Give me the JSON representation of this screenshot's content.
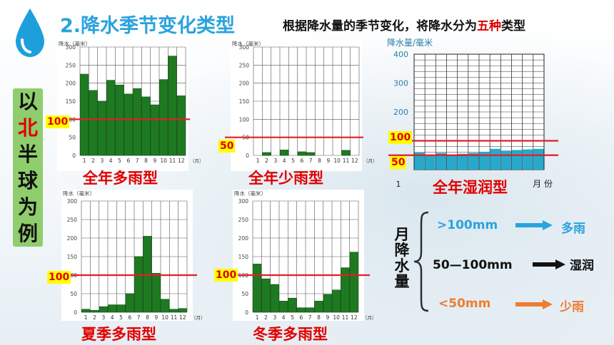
{
  "header": {
    "title": "2.降水季节变化类型",
    "subtitle_pre": "根据降水量的季节变化，将降水分为",
    "subtitle_hl": "五种",
    "subtitle_post": "类型"
  },
  "side_label": [
    "以",
    "北",
    "半",
    "球",
    "为",
    "例"
  ],
  "colors": {
    "bar": "#1e7a21",
    "bar_blue": "#27a9cc",
    "threshold": "#e31e24",
    "title": "#2aa3de",
    "side_bg": "#8fcd6d"
  },
  "months": [
    "1",
    "2",
    "3",
    "4",
    "5",
    "6",
    "7",
    "8",
    "9",
    "10",
    "11",
    "12"
  ],
  "charts": [
    {
      "id": "c1",
      "type_label": "全年多雨型",
      "ylabel": "降水（毫米）",
      "unit": "（月）",
      "yticks": [
        "300",
        "250",
        "200",
        "150",
        "100",
        "50",
        "0"
      ],
      "threshold": "100",
      "chart_data": {
        "type": "bar",
        "categories": [
          "1",
          "2",
          "3",
          "4",
          "5",
          "6",
          "7",
          "8",
          "9",
          "10",
          "11",
          "12"
        ],
        "values": [
          225,
          180,
          150,
          208,
          195,
          170,
          185,
          162,
          140,
          210,
          275,
          165
        ],
        "ylim": [
          0,
          300
        ]
      }
    },
    {
      "id": "c2",
      "type_label": "全年少雨型",
      "ylabel": "降水（毫米）",
      "unit": "（月）",
      "yticks": [
        "300",
        "250",
        "200",
        "150",
        "100",
        "50",
        "0"
      ],
      "threshold": "50",
      "chart_data": {
        "type": "bar",
        "categories": [
          "1",
          "2",
          "3",
          "4",
          "5",
          "6",
          "7",
          "8",
          "9",
          "10",
          "11",
          "12"
        ],
        "values": [
          0,
          8,
          0,
          15,
          0,
          10,
          8,
          0,
          0,
          0,
          14,
          0
        ],
        "ylim": [
          0,
          300
        ]
      }
    },
    {
      "id": "c3",
      "type_label": "夏季多雨型",
      "ylabel": "降水（毫米）",
      "unit": "（月）",
      "yticks": [
        "300",
        "250",
        "200",
        "150",
        "100",
        "50",
        "0"
      ],
      "threshold": "100",
      "chart_data": {
        "type": "bar",
        "categories": [
          "1",
          "2",
          "3",
          "4",
          "5",
          "6",
          "7",
          "8",
          "9",
          "10",
          "11",
          "12"
        ],
        "values": [
          8,
          5,
          15,
          20,
          20,
          50,
          150,
          205,
          105,
          35,
          8,
          10
        ],
        "ylim": [
          0,
          300
        ]
      }
    },
    {
      "id": "c4",
      "type_label": "冬季多雨型",
      "ylabel": "降水（毫米）",
      "unit": "（月）",
      "yticks": [
        "300",
        "250",
        "200",
        "150",
        "100",
        "50",
        "0"
      ],
      "threshold": "100",
      "chart_data": {
        "type": "bar",
        "categories": [
          "1",
          "2",
          "3",
          "4",
          "5",
          "6",
          "7",
          "8",
          "9",
          "10",
          "11",
          "12"
        ],
        "values": [
          130,
          90,
          75,
          30,
          38,
          12,
          12,
          30,
          48,
          60,
          120,
          162
        ],
        "ylim": [
          0,
          300
        ]
      }
    },
    {
      "id": "c5",
      "type_label": "全年湿润型",
      "ylabel": "降水量/毫米",
      "unit": "月 份",
      "first_tick": "1",
      "yticks": [
        "400",
        "300",
        "200",
        "100",
        "0"
      ],
      "thresholds": [
        "100",
        "50"
      ],
      "chart_data": {
        "type": "bar",
        "categories": [
          "1",
          "2",
          "3",
          "4",
          "5",
          "6",
          "7",
          "8",
          "9",
          "10",
          "11",
          "12"
        ],
        "values": [
          60,
          52,
          58,
          52,
          55,
          58,
          62,
          72,
          66,
          68,
          70,
          72
        ],
        "ylim": [
          0,
          400
        ]
      }
    }
  ],
  "legend": {
    "title": [
      "月",
      "降",
      "水",
      "量"
    ],
    "rows": [
      {
        "range": ">100mm",
        "result": "多雨",
        "color": "#2aa3de"
      },
      {
        "range": "50—100mm",
        "result": "湿润",
        "color": "#111111"
      },
      {
        "range": "<50mm",
        "result": "少雨",
        "color": "#ed7d31"
      }
    ]
  }
}
